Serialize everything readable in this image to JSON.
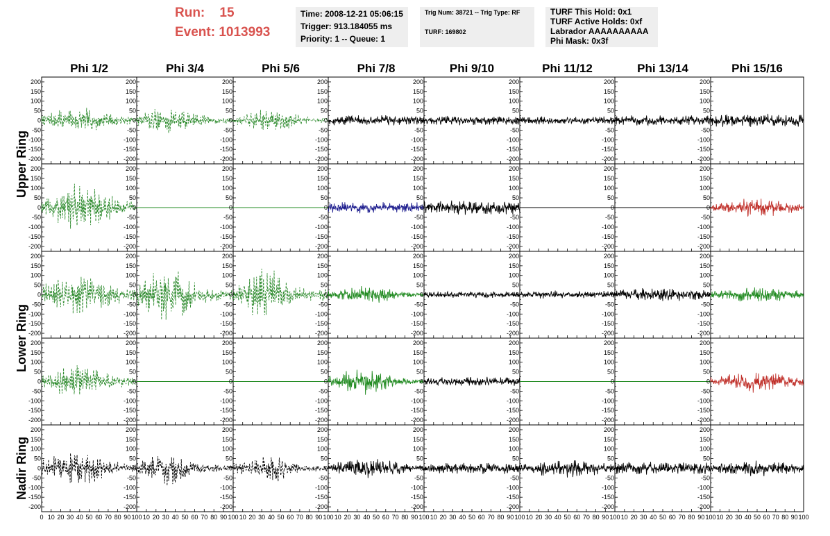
{
  "header": {
    "run_label": "Run:",
    "run_value": "15",
    "event_label": "Event:",
    "event_value": "1013993",
    "time_box": [
      "Time: 2008-12-21 05:06:15",
      "Trigger: 913.184055 ms",
      "Priority: 1 -- Queue: 1"
    ],
    "trig_box": [
      "Trig Num: 38721 -- Trig Type: RF",
      "TURF: 169802"
    ],
    "turf_box": [
      "TURF This Hold: 0x1",
      "TURF Active Holds: 0xf",
      "Labrador AAAAAAAAAA",
      "Phi Mask: 0x3f"
    ]
  },
  "colors": {
    "header_red": "#d9534f",
    "info_bg": "#eeeeee",
    "dashed_green": "#2e8b2e",
    "green": "#228b22",
    "blue": "#1f1f8f",
    "red": "#c0302a",
    "black": "#000000"
  },
  "chart_data": {
    "type": "line",
    "layout": "grid of 8 columns by 5 rows of waveform panels",
    "columns": [
      "Phi 1/2",
      "Phi 3/4",
      "Phi 5/6",
      "Phi 7/8",
      "Phi 9/10",
      "Phi 11/12",
      "Phi 13/14",
      "Phi 15/16"
    ],
    "row_labels": [
      {
        "text": "Upper Ring",
        "rows": [
          0,
          1
        ]
      },
      {
        "text": "Lower Ring",
        "rows": [
          2,
          3
        ]
      },
      {
        "text": "Nadir Ring",
        "rows": [
          4
        ]
      }
    ],
    "xlim": [
      0,
      100
    ],
    "ylim": [
      -225,
      225
    ],
    "y_ticks": [
      200,
      150,
      100,
      50,
      0,
      -50,
      -100,
      -150,
      -200
    ],
    "x_ticks": [
      0,
      10,
      20,
      30,
      40,
      50,
      60,
      70,
      80,
      90,
      100
    ],
    "note_values": "each panel is a noisy waveform; amplitudes are approximate envelope values",
    "panels": [
      [
        {
          "style": "dashed",
          "color": "dashed_green",
          "amp": 70,
          "peak": 40,
          "width": 35
        },
        {
          "style": "dashed",
          "color": "dashed_green",
          "amp": 80,
          "peak": 35,
          "width": 28
        },
        {
          "style": "dashed",
          "color": "dashed_green",
          "amp": 65,
          "peak": 40,
          "width": 28
        },
        {
          "style": "solid",
          "color": "black",
          "amp": 28,
          "peak": 50,
          "width": 200
        },
        {
          "style": "solid",
          "color": "black",
          "amp": 25,
          "peak": 50,
          "width": 200
        },
        {
          "style": "solid",
          "color": "black",
          "amp": 22,
          "peak": 50,
          "width": 200
        },
        {
          "style": "solid",
          "color": "black",
          "amp": 28,
          "peak": 50,
          "width": 200
        },
        {
          "style": "solid",
          "color": "black",
          "amp": 35,
          "peak": 50,
          "width": 200
        }
      ],
      [
        {
          "style": "dashed",
          "color": "dashed_green",
          "amp": 140,
          "peak": 40,
          "width": 32
        },
        {
          "style": "flat",
          "color": "green",
          "amp": 0,
          "peak": 50,
          "width": 100
        },
        {
          "style": "flat",
          "color": "green",
          "amp": 0,
          "peak": 50,
          "width": 100
        },
        {
          "style": "solid",
          "color": "blue",
          "amp": 30,
          "peak": 50,
          "width": 200
        },
        {
          "style": "solid",
          "color": "black",
          "amp": 38,
          "peak": 50,
          "width": 200
        },
        {
          "style": "flat",
          "color": "black",
          "amp": 0,
          "peak": 50,
          "width": 100
        },
        {
          "style": "flat",
          "color": "black",
          "amp": 0,
          "peak": 50,
          "width": 100
        },
        {
          "style": "solid",
          "color": "red",
          "amp": 55,
          "peak": 50,
          "width": 40
        }
      ],
      [
        {
          "style": "dashed",
          "color": "dashed_green",
          "amp": 110,
          "peak": 40,
          "width": 40
        },
        {
          "style": "dashed",
          "color": "dashed_green",
          "amp": 150,
          "peak": 30,
          "width": 28
        },
        {
          "style": "dashed",
          "color": "dashed_green",
          "amp": 175,
          "peak": 35,
          "width": 20
        },
        {
          "style": "solid",
          "color": "green",
          "amp": 55,
          "peak": 40,
          "width": 30
        },
        {
          "style": "solid",
          "color": "black",
          "amp": 18,
          "peak": 50,
          "width": 200
        },
        {
          "style": "solid",
          "color": "black",
          "amp": 22,
          "peak": 50,
          "width": 200
        },
        {
          "style": "solid",
          "color": "black",
          "amp": 38,
          "peak": 50,
          "width": 60
        },
        {
          "style": "solid",
          "color": "green",
          "amp": 40,
          "peak": 50,
          "width": 50
        }
      ],
      [
        {
          "style": "dashed",
          "color": "dashed_green",
          "amp": 90,
          "peak": 40,
          "width": 35
        },
        {
          "style": "flat",
          "color": "green",
          "amp": 0,
          "peak": 50,
          "width": 100
        },
        {
          "style": "flat",
          "color": "green",
          "amp": 0,
          "peak": 50,
          "width": 100
        },
        {
          "style": "solid",
          "color": "green",
          "amp": 75,
          "peak": 35,
          "width": 28
        },
        {
          "style": "solid",
          "color": "black",
          "amp": 25,
          "peak": 50,
          "width": 200
        },
        {
          "style": "flat",
          "color": "green",
          "amp": 0,
          "peak": 50,
          "width": 100
        },
        {
          "style": "flat",
          "color": "green",
          "amp": 0,
          "peak": 50,
          "width": 100
        },
        {
          "style": "solid",
          "color": "red",
          "amp": 60,
          "peak": 50,
          "width": 40
        }
      ],
      [
        {
          "style": "dashed",
          "color": "black",
          "amp": 95,
          "peak": 35,
          "width": 35
        },
        {
          "style": "dashed",
          "color": "black",
          "amp": 95,
          "peak": 32,
          "width": 25
        },
        {
          "style": "dashed",
          "color": "black",
          "amp": 80,
          "peak": 38,
          "width": 25
        },
        {
          "style": "solid",
          "color": "black",
          "amp": 55,
          "peak": 40,
          "width": 40
        },
        {
          "style": "solid",
          "color": "black",
          "amp": 30,
          "peak": 50,
          "width": 200
        },
        {
          "style": "solid",
          "color": "black",
          "amp": 50,
          "peak": 50,
          "width": 45
        },
        {
          "style": "solid",
          "color": "black",
          "amp": 35,
          "peak": 50,
          "width": 200
        },
        {
          "style": "solid",
          "color": "black",
          "amp": 45,
          "peak": 50,
          "width": 50
        }
      ]
    ]
  }
}
